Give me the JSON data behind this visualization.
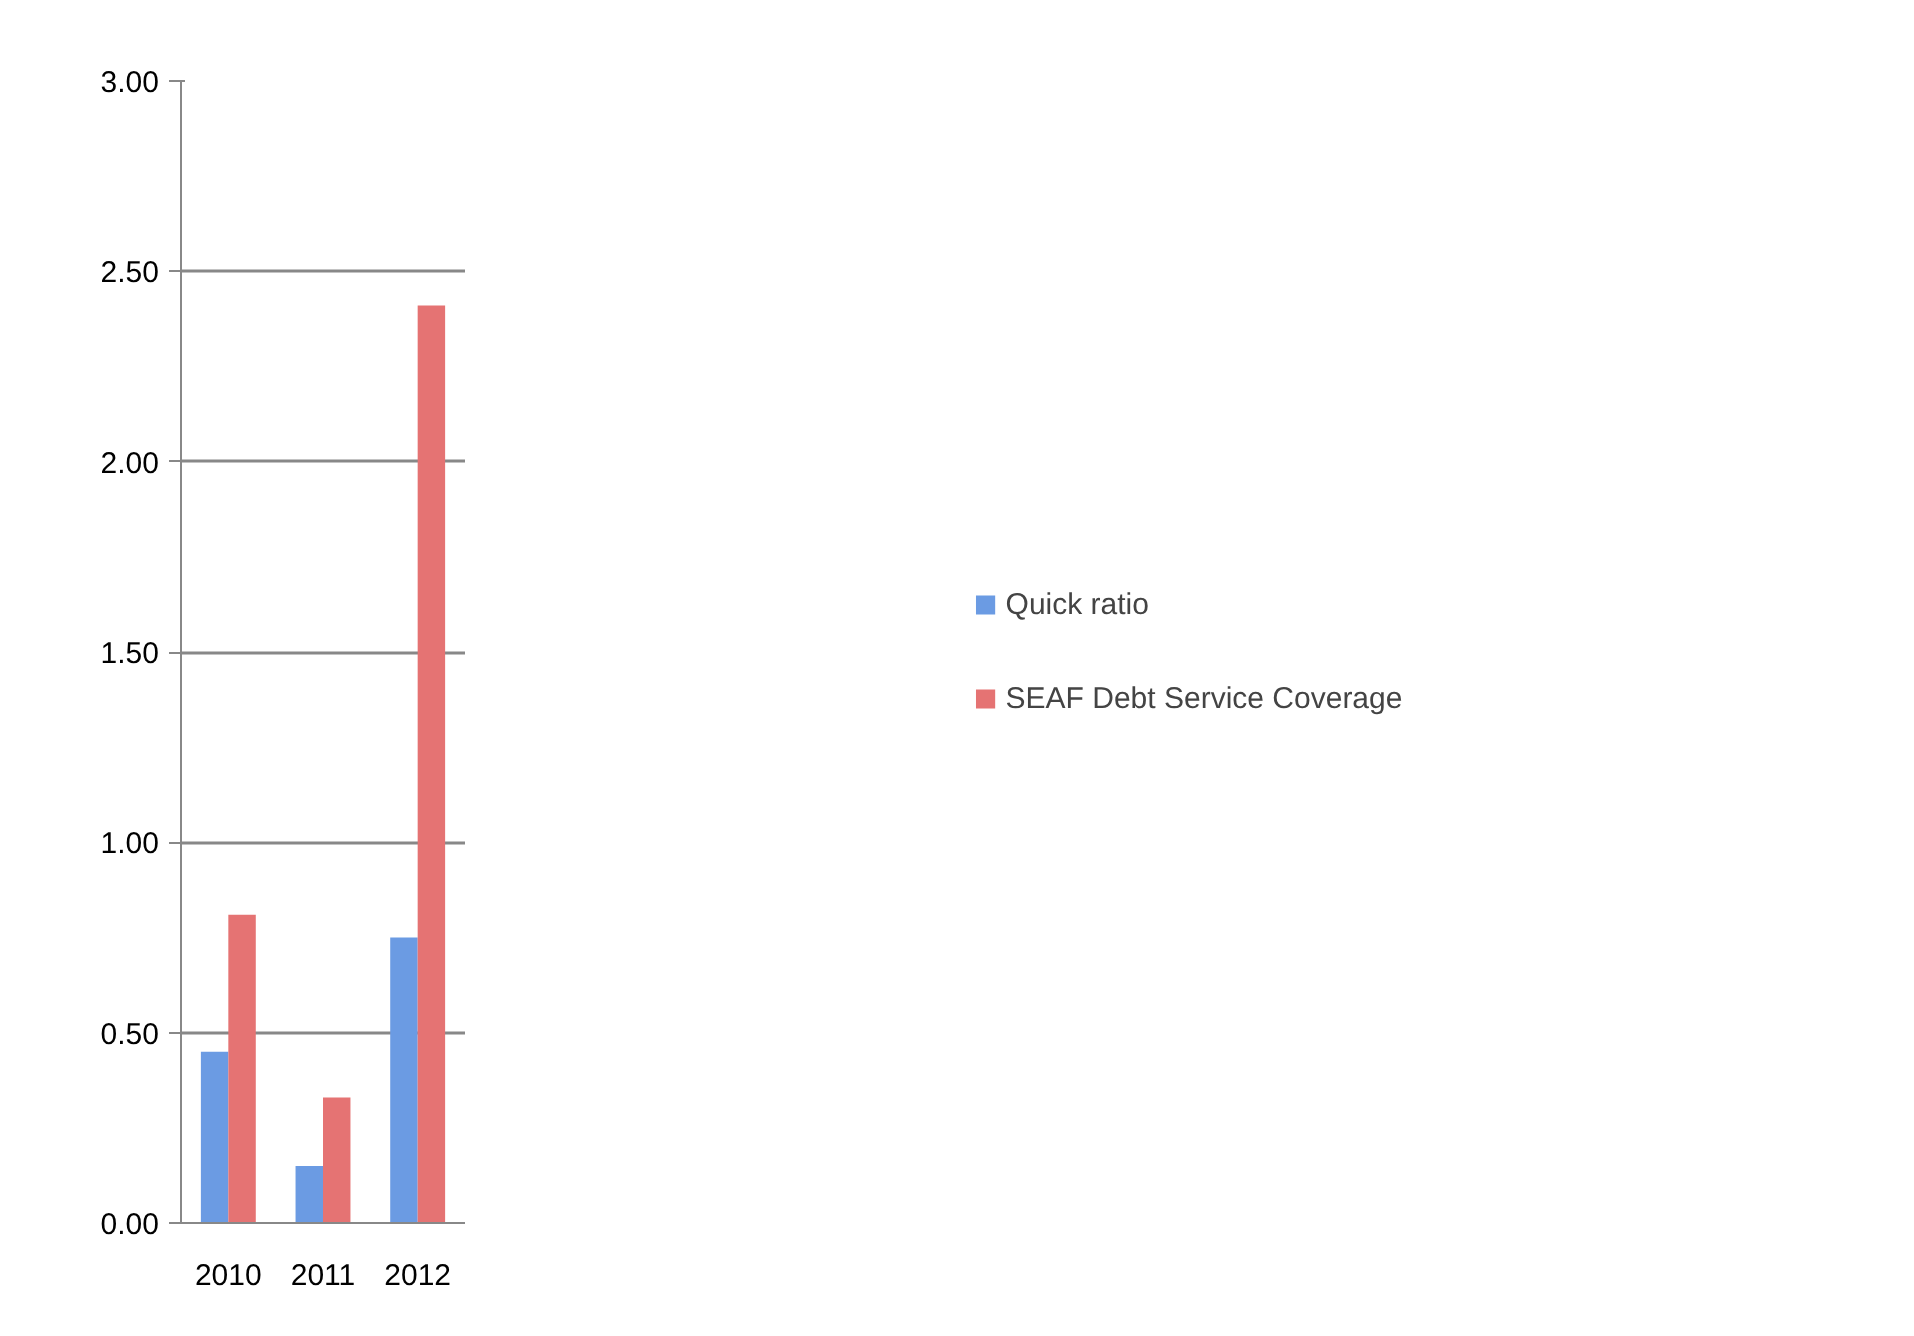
{
  "chart_data": {
    "type": "bar",
    "categories": [
      "2010",
      "2011",
      "2012"
    ],
    "series": [
      {
        "name": "Quick ratio",
        "color": "#6b9be3",
        "values": [
          0.45,
          0.15,
          0.75
        ]
      },
      {
        "name": "SEAF Debt Service Coverage",
        "color": "#e57373",
        "values": [
          0.81,
          0.33,
          2.41
        ]
      }
    ],
    "ylim": [
      0,
      3
    ],
    "yticks": [
      {
        "value": 0,
        "label": "0.00"
      },
      {
        "value": 0.5,
        "label": "0.50"
      },
      {
        "value": 1,
        "label": "1.00"
      },
      {
        "value": 1.5,
        "label": "1.50"
      },
      {
        "value": 2,
        "label": "2.00"
      },
      {
        "value": 2.5,
        "label": "2.50"
      },
      {
        "value": 3,
        "label": "3.00"
      }
    ],
    "grid": "y",
    "legend": "right"
  }
}
